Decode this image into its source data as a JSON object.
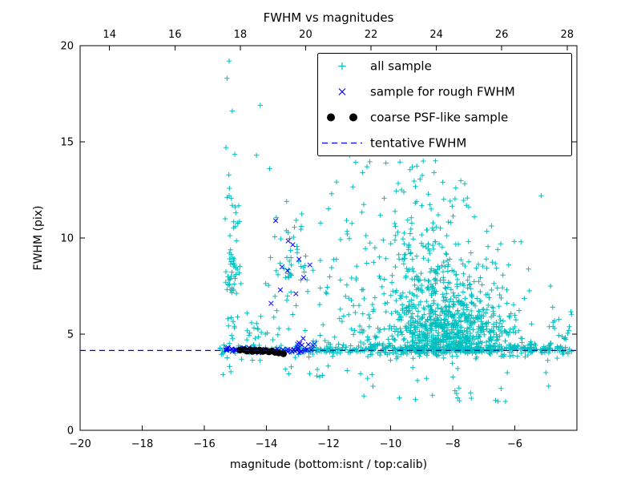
{
  "figure": {
    "title": "FWHM vs magnitudes",
    "xlabel": "magnitude (bottom:isnt / top:calib)",
    "ylabel": "FWHM (pix)",
    "background": "#ffffff"
  },
  "axes": {
    "x_bottom": {
      "range": [
        -20,
        -4
      ],
      "ticks": [
        -20,
        -18,
        -16,
        -14,
        -12,
        -10,
        -8,
        -6
      ],
      "labels": [
        "−20",
        "−18",
        "−16",
        "−14",
        "−12",
        "−10",
        "−8",
        "−6"
      ]
    },
    "x_top": {
      "range": [
        13.1,
        28.3
      ],
      "ticks": [
        14,
        16,
        18,
        20,
        22,
        24,
        26,
        28
      ],
      "labels": [
        "14",
        "16",
        "18",
        "20",
        "22",
        "24",
        "26",
        "28"
      ]
    },
    "y": {
      "range": [
        0,
        20
      ],
      "ticks": [
        0,
        5,
        10,
        15,
        20
      ],
      "labels": [
        "0",
        "5",
        "10",
        "15",
        "20"
      ]
    }
  },
  "legend": {
    "items": [
      {
        "label": "all sample",
        "marker": "plus",
        "color": "#00bfbf"
      },
      {
        "label": "sample for rough FWHM",
        "marker": "x",
        "color": "#0000ff"
      },
      {
        "label": "coarse PSF-like sample",
        "marker": "dots",
        "color": "#000000"
      },
      {
        "label": "tentative FWHM",
        "marker": "dashed",
        "color": "#0000ff"
      }
    ]
  },
  "chart_data": {
    "type": "scatter",
    "title": "FWHM vs magnitudes",
    "xlabel": "magnitude (bottom:isnt / top:calib)",
    "ylabel": "FWHM (pix)",
    "xlim": [
      -20,
      -4
    ],
    "ylim": [
      0,
      20
    ],
    "x_top_lim": [
      13.1,
      28.3
    ],
    "grid": false,
    "legend_loc": "upper right",
    "seed": 7,
    "tentative_fwhm": 4.15,
    "series": [
      {
        "name": "all sample",
        "marker": "plus",
        "color": "#00bfbf",
        "points": [
          [
            -15.2,
            19.2
          ],
          [
            -15.27,
            18.3
          ],
          [
            -15.1,
            16.6
          ],
          [
            -15.3,
            14.7
          ],
          [
            -15.02,
            14.35
          ],
          [
            -15.2,
            12.2
          ],
          [
            -15.1,
            11.7
          ],
          [
            -15.33,
            11.0
          ],
          [
            -15.0,
            10.6
          ],
          [
            -14.2,
            16.9
          ],
          [
            -14.32,
            14.3
          ],
          [
            -13.9,
            13.6
          ],
          [
            -13.35,
            11.9
          ],
          [
            -12.86,
            11.25
          ],
          [
            -12.2,
            14.6
          ],
          [
            -11.9,
            12.3
          ],
          [
            -11.32,
            14.3
          ],
          [
            -10.9,
            13.4
          ],
          [
            -10.42,
            14.7
          ],
          [
            -10.15,
            13.9
          ],
          [
            -9.95,
            14.5
          ],
          [
            -9.7,
            13.95
          ],
          [
            -9.55,
            14.4
          ],
          [
            -9.3,
            13.7
          ],
          [
            -8.95,
            14.0
          ],
          [
            -8.6,
            13.4
          ],
          [
            -8.32,
            12.9
          ],
          [
            -7.9,
            12.6
          ],
          [
            -7.56,
            11.7
          ],
          [
            -7.3,
            11.1
          ],
          [
            -6.9,
            10.35
          ],
          [
            -6.55,
            9.4
          ],
          [
            -6.2,
            8.6
          ],
          [
            -5.8,
            9.8
          ],
          [
            -5.15,
            12.2
          ],
          [
            -4.85,
            7.5
          ],
          [
            -4.78,
            6.4
          ],
          [
            -4.72,
            5.3
          ],
          [
            -4.9,
            4.4
          ],
          [
            -5.0,
            3.0
          ],
          [
            -6.3,
            1.5
          ],
          [
            -7.8,
            2.2
          ],
          [
            -9.2,
            1.6
          ],
          [
            -10.6,
            2.9
          ],
          [
            -13.2,
            3.3
          ],
          [
            -14.8,
            3.7
          ],
          [
            -15.4,
            2.9
          ]
        ],
        "clusters": [
          {
            "n": 330,
            "xmin": -15.5,
            "xmax": -4.1,
            "cy": 4.2,
            "sy": 0.1
          },
          {
            "n": 150,
            "xmin": -13.2,
            "xmax": -4.3,
            "cy": 4.3,
            "sy": 0.3,
            "ymin": 3.6
          },
          {
            "n": 120,
            "xmin": -10.8,
            "xmax": -5.4,
            "cy": 4.5,
            "sy": 0.55,
            "ymin": 3.8
          },
          {
            "n": 420,
            "cx": -8.2,
            "sx": 0.85,
            "cy": 5.1,
            "sy": 0.75,
            "ymin": 4.05
          },
          {
            "n": 260,
            "cx": -8.4,
            "sx": 1.0,
            "cy": 6.6,
            "sy": 1.1,
            "ymin": 4.1
          },
          {
            "n": 130,
            "cx": -8.7,
            "sx": 1.1,
            "cy": 8.8,
            "sy": 1.4,
            "ymin": 4.2
          },
          {
            "n": 45,
            "cx": -9.3,
            "sx": 1.0,
            "cy": 11.8,
            "sy": 1.4,
            "ymin": 8.0,
            "ymax": 14.8
          },
          {
            "n": 38,
            "cx": -15.05,
            "sx": 0.12,
            "ymin": 4.4,
            "ymax": 13.6
          },
          {
            "n": 22,
            "cx": -15.1,
            "sx": 0.1,
            "cy": 7.9,
            "sy": 0.7
          },
          {
            "n": 55,
            "cx": -13.05,
            "sx": 0.38,
            "cy": 8.4,
            "sy": 1.5,
            "ymin": 5.0
          },
          {
            "n": 28,
            "cx": -14.2,
            "sx": 0.45,
            "cy": 5.2,
            "sy": 0.6,
            "ymin": 4.35
          },
          {
            "n": 45,
            "xmin": -12.3,
            "xmax": -10.4,
            "cy": 7.5,
            "sy": 2.6,
            "ymin": 4.4,
            "ymax": 13.8
          },
          {
            "n": 14,
            "xmin": -15.5,
            "xmax": -12.0,
            "ymin": 2.7,
            "ymax": 3.95
          },
          {
            "n": 26,
            "xmin": -11.5,
            "xmax": -4.8,
            "ymin": 1.5,
            "ymax": 3.9
          },
          {
            "n": 22,
            "xmin": -5.7,
            "xmax": -4.15,
            "cy": 4.7,
            "sy": 0.9,
            "ymin": 3.6
          },
          {
            "n": 35,
            "cx": -7.0,
            "sx": 0.8,
            "cy": 5.7,
            "sy": 1.0,
            "ymin": 4.2
          }
        ]
      },
      {
        "name": "sample for rough FWHM",
        "marker": "x",
        "color": "#0000ff",
        "points": [
          [
            -13.7,
            10.9
          ],
          [
            -13.3,
            9.85
          ],
          [
            -13.15,
            9.65
          ],
          [
            -13.5,
            8.5
          ],
          [
            -13.32,
            8.3
          ],
          [
            -12.95,
            8.9
          ],
          [
            -13.55,
            7.3
          ],
          [
            -13.05,
            7.1
          ],
          [
            -12.8,
            7.95
          ],
          [
            -13.85,
            6.6
          ],
          [
            -12.6,
            8.6
          ]
        ],
        "clusters": [
          {
            "n": 48,
            "xmin": -15.3,
            "xmax": -12.4,
            "cy": 4.2,
            "sy": 0.07
          },
          {
            "n": 10,
            "xmin": -13.0,
            "xmax": -12.4,
            "cy": 4.4,
            "sy": 0.2
          }
        ]
      },
      {
        "name": "coarse PSF-like sample",
        "marker": "circle",
        "color": "#000000",
        "points": [
          [
            -14.85,
            4.17
          ],
          [
            -14.72,
            4.19
          ],
          [
            -14.62,
            4.12
          ],
          [
            -14.52,
            4.18
          ],
          [
            -14.45,
            4.1
          ],
          [
            -14.38,
            4.16
          ],
          [
            -14.3,
            4.12
          ],
          [
            -14.22,
            4.17
          ],
          [
            -14.12,
            4.1
          ],
          [
            -14.02,
            4.14
          ],
          [
            -13.92,
            4.08
          ],
          [
            -13.82,
            4.12
          ],
          [
            -13.72,
            4.05
          ],
          [
            -13.6,
            4.02
          ],
          [
            -13.45,
            3.98
          ]
        ]
      },
      {
        "name": "tentative FWHM",
        "type": "hline",
        "y": 4.15,
        "color": "#0000ff",
        "dash": [
          7,
          5
        ]
      }
    ]
  }
}
